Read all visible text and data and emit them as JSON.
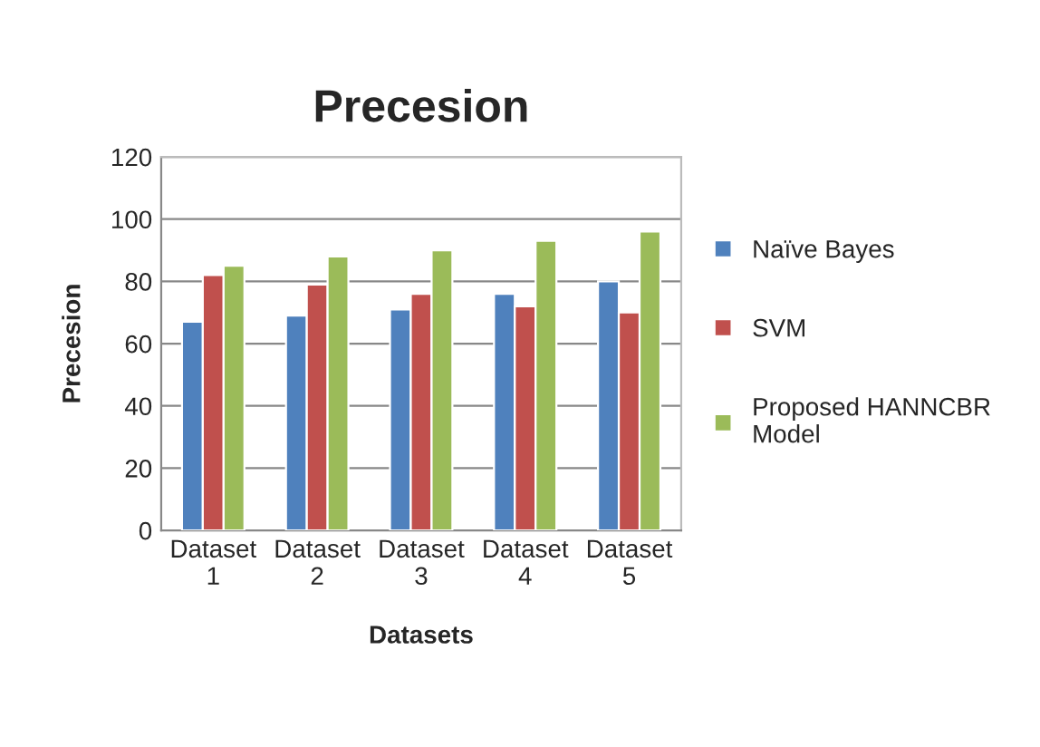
{
  "chart_data": {
    "type": "bar",
    "title": "Precesion",
    "xlabel": "Datasets",
    "ylabel": "Precesion",
    "categories": [
      "Dataset\n1",
      "Dataset\n2",
      "Dataset\n3",
      "Dataset\n4",
      "Dataset\n5"
    ],
    "series": [
      {
        "name": "Naïve Bayes",
        "color": "#4f81bd",
        "values": [
          67,
          69,
          71,
          76,
          80
        ]
      },
      {
        "name": "SVM",
        "color": "#c0504d",
        "values": [
          82,
          79,
          76,
          72,
          70
        ]
      },
      {
        "name": "Proposed HANNCBR\nModel",
        "color": "#9bbb59",
        "values": [
          85,
          88,
          90,
          93,
          96
        ]
      }
    ],
    "ylim": [
      0,
      120
    ],
    "yticks": [
      0,
      20,
      40,
      60,
      80,
      100,
      120
    ],
    "grid": "y",
    "legend": "right"
  }
}
